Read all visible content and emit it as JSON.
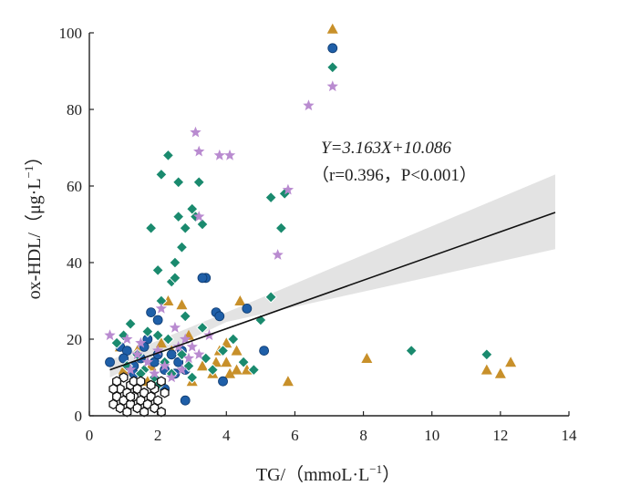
{
  "chart_data": {
    "type": "scatter",
    "xlabel": "TG/（mmoL·L",
    "xlabel_sup": "−1",
    "xlabel_end": "）",
    "ylabel": "ox-HDL/（μg·L",
    "ylabel_sup": "−1",
    "ylabel_end": "）",
    "xlim": [
      0,
      14
    ],
    "ylim": [
      0,
      100
    ],
    "x_ticks": [
      0,
      2,
      4,
      6,
      8,
      10,
      12,
      14
    ],
    "y_ticks": [
      0,
      20,
      40,
      60,
      80,
      100
    ],
    "annotation_line1": "Y=3.163X+10.086",
    "annotation_line2": "（r=0.396，P<0.001）",
    "fit": {
      "slope": 3.163,
      "intercept": 10.086,
      "x_start": 0.6,
      "x_end": 13.6
    },
    "confidence_band": {
      "x": [
        0.6,
        4.0,
        13.6
      ],
      "upper": [
        14.5,
        27,
        63
      ],
      "lower": [
        10,
        24.5,
        43.5
      ]
    },
    "colors": {
      "orange": "#c8902a",
      "blue": "#1f5fa8",
      "green": "#1a8a6e",
      "purple": "#b98bd0",
      "line": "#111111",
      "band": "#d9d9d9"
    },
    "series": [
      {
        "marker": "triangle",
        "color": "#c8902a",
        "points": [
          [
            7.1,
            101
          ],
          [
            2.7,
            29
          ],
          [
            4.4,
            30
          ],
          [
            2.3,
            30
          ],
          [
            4.0,
            19
          ],
          [
            4.3,
            17
          ],
          [
            4.0,
            14
          ],
          [
            3.7,
            14
          ],
          [
            3.8,
            17
          ],
          [
            4.6,
            12
          ],
          [
            4.3,
            12
          ],
          [
            4.1,
            11
          ],
          [
            5.8,
            9
          ],
          [
            8.1,
            15
          ],
          [
            11.6,
            12
          ],
          [
            12.0,
            11
          ],
          [
            12.3,
            14
          ],
          [
            3.0,
            9
          ],
          [
            2.4,
            17
          ],
          [
            2.1,
            19
          ],
          [
            3.3,
            13
          ],
          [
            3.6,
            11
          ],
          [
            2.9,
            21
          ],
          [
            1.8,
            13
          ],
          [
            1.4,
            17
          ],
          [
            0.9,
            18
          ],
          [
            1.0,
            12
          ],
          [
            1.7,
            9
          ]
        ]
      },
      {
        "marker": "circle",
        "color": "#1f5fa8",
        "points": [
          [
            7.1,
            96
          ],
          [
            3.4,
            36
          ],
          [
            3.3,
            36
          ],
          [
            3.7,
            27
          ],
          [
            3.8,
            26
          ],
          [
            4.6,
            28
          ],
          [
            5.1,
            17
          ],
          [
            3.9,
            9
          ],
          [
            2.8,
            4
          ],
          [
            0.6,
            14
          ],
          [
            0.9,
            18
          ],
          [
            1.1,
            17
          ],
          [
            1.3,
            13
          ],
          [
            1.5,
            15
          ],
          [
            1.7,
            20
          ],
          [
            1.9,
            14
          ],
          [
            2.0,
            16
          ],
          [
            2.2,
            12
          ],
          [
            2.4,
            16
          ],
          [
            2.5,
            11
          ],
          [
            2.6,
            14
          ],
          [
            2.7,
            17
          ],
          [
            2.8,
            12
          ],
          [
            2.2,
            7
          ],
          [
            1.6,
            18
          ],
          [
            1.3,
            11
          ],
          [
            1.0,
            15
          ],
          [
            2.0,
            25
          ],
          [
            1.8,
            27
          ]
        ]
      },
      {
        "marker": "diamond",
        "color": "#1a8a6e",
        "points": [
          [
            7.1,
            91
          ],
          [
            2.3,
            68
          ],
          [
            2.1,
            63
          ],
          [
            2.6,
            61
          ],
          [
            3.2,
            61
          ],
          [
            3.0,
            54
          ],
          [
            1.8,
            49
          ],
          [
            2.8,
            49
          ],
          [
            2.7,
            44
          ],
          [
            2.6,
            52
          ],
          [
            3.1,
            52
          ],
          [
            2.0,
            38
          ],
          [
            2.5,
            40
          ],
          [
            2.4,
            35
          ],
          [
            3.3,
            50
          ],
          [
            5.3,
            57
          ],
          [
            5.7,
            58
          ],
          [
            5.6,
            49
          ],
          [
            5.3,
            31
          ],
          [
            2.5,
            36
          ],
          [
            2.8,
            26
          ],
          [
            3.3,
            23
          ],
          [
            2.1,
            30
          ],
          [
            1.7,
            22
          ],
          [
            2.0,
            21
          ],
          [
            2.3,
            20
          ],
          [
            1.2,
            24
          ],
          [
            0.8,
            19
          ],
          [
            1.1,
            13
          ],
          [
            1.4,
            16
          ],
          [
            1.6,
            12
          ],
          [
            1.9,
            10
          ],
          [
            2.2,
            14
          ],
          [
            2.4,
            11
          ],
          [
            2.7,
            16
          ],
          [
            2.9,
            13
          ],
          [
            3.4,
            15
          ],
          [
            3.6,
            12
          ],
          [
            3.9,
            17
          ],
          [
            4.2,
            20
          ],
          [
            4.5,
            14
          ],
          [
            4.8,
            12
          ],
          [
            5.0,
            25
          ],
          [
            9.4,
            17
          ],
          [
            11.6,
            16
          ],
          [
            2.0,
            8
          ],
          [
            1.5,
            11
          ],
          [
            3.0,
            10
          ],
          [
            1.0,
            21
          ]
        ]
      },
      {
        "marker": "star",
        "color": "#b98bd0",
        "points": [
          [
            7.1,
            86
          ],
          [
            6.4,
            81
          ],
          [
            3.1,
            74
          ],
          [
            3.2,
            69
          ],
          [
            3.8,
            68
          ],
          [
            4.1,
            68
          ],
          [
            5.8,
            59
          ],
          [
            3.2,
            52
          ],
          [
            5.5,
            42
          ],
          [
            2.1,
            28
          ],
          [
            2.5,
            23
          ],
          [
            2.8,
            20
          ],
          [
            3.0,
            18
          ],
          [
            3.5,
            21
          ],
          [
            0.6,
            21
          ],
          [
            1.1,
            20
          ],
          [
            1.4,
            16
          ],
          [
            1.7,
            14
          ],
          [
            2.0,
            17
          ],
          [
            2.2,
            13
          ],
          [
            2.4,
            10
          ],
          [
            2.6,
            18
          ],
          [
            2.9,
            15
          ],
          [
            1.2,
            12
          ],
          [
            1.9,
            11
          ],
          [
            2.7,
            12
          ],
          [
            1.5,
            19
          ],
          [
            3.2,
            16
          ]
        ]
      },
      {
        "marker": "hexagon",
        "color": "#ffffff",
        "points": [
          [
            0.7,
            3
          ],
          [
            0.8,
            5
          ],
          [
            0.9,
            2
          ],
          [
            0.9,
            7
          ],
          [
            1.0,
            4
          ],
          [
            1.1,
            1
          ],
          [
            1.1,
            6
          ],
          [
            1.2,
            3
          ],
          [
            1.2,
            8
          ],
          [
            1.3,
            5
          ],
          [
            1.4,
            2
          ],
          [
            1.4,
            7
          ],
          [
            1.5,
            4
          ],
          [
            1.6,
            1
          ],
          [
            1.6,
            6
          ],
          [
            1.7,
            3
          ],
          [
            1.8,
            5
          ],
          [
            1.9,
            2
          ],
          [
            1.9,
            7
          ],
          [
            2.0,
            4
          ],
          [
            2.1,
            1
          ],
          [
            2.2,
            6
          ],
          [
            1.3,
            9
          ],
          [
            1.0,
            10
          ],
          [
            0.8,
            9
          ],
          [
            1.5,
            9
          ],
          [
            1.8,
            8
          ],
          [
            2.1,
            9
          ],
          [
            0.7,
            7
          ],
          [
            1.2,
            5
          ]
        ]
      }
    ]
  }
}
